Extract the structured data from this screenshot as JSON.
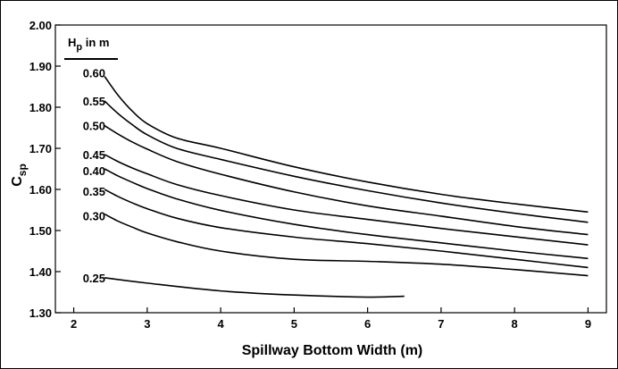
{
  "chart_data": {
    "type": "line",
    "title": "",
    "xlabel": "Spillway Bottom Width (m)",
    "ylabel_main": "C",
    "ylabel_sub": "sp",
    "xlim": [
      1.75,
      9.25
    ],
    "ylim": [
      1.3,
      2.0
    ],
    "x_ticks": [
      2,
      3,
      4,
      5,
      6,
      7,
      8,
      9
    ],
    "y_ticks": [
      1.3,
      1.4,
      1.5,
      1.6,
      1.7,
      1.8,
      1.9,
      2.0
    ],
    "y_tick_labels": [
      "1.30",
      "1.40",
      "1.50",
      "1.60",
      "1.70",
      "1.80",
      "1.90",
      "2.00"
    ],
    "grid": false,
    "legend_title_main": "H",
    "legend_title_sub": "p",
    "legend_title_rest": " in m",
    "series": [
      {
        "name": "0.60",
        "x": [
          2.42,
          2.6,
          2.8,
          3.0,
          3.4,
          4.0,
          5.0,
          6.0,
          7.0,
          8.0,
          9.0
        ],
        "y": [
          1.875,
          1.83,
          1.79,
          1.76,
          1.725,
          1.7,
          1.655,
          1.618,
          1.588,
          1.565,
          1.545
        ]
      },
      {
        "name": "0.55",
        "x": [
          2.42,
          2.6,
          2.8,
          3.0,
          3.4,
          4.0,
          5.0,
          6.0,
          7.0,
          8.0,
          9.0
        ],
        "y": [
          1.815,
          1.785,
          1.757,
          1.733,
          1.7,
          1.673,
          1.632,
          1.597,
          1.567,
          1.542,
          1.52
        ]
      },
      {
        "name": "0.50",
        "x": [
          2.42,
          2.6,
          2.8,
          3.0,
          3.4,
          4.0,
          5.0,
          6.0,
          7.0,
          8.0,
          9.0
        ],
        "y": [
          1.755,
          1.735,
          1.715,
          1.698,
          1.668,
          1.637,
          1.594,
          1.56,
          1.535,
          1.51,
          1.49
        ]
      },
      {
        "name": "0.45",
        "x": [
          2.42,
          2.6,
          2.8,
          3.0,
          3.4,
          4.0,
          5.0,
          6.0,
          7.0,
          8.0,
          9.0
        ],
        "y": [
          1.685,
          1.668,
          1.652,
          1.638,
          1.612,
          1.585,
          1.55,
          1.527,
          1.505,
          1.485,
          1.465
        ]
      },
      {
        "name": "0.40",
        "x": [
          2.42,
          2.6,
          2.8,
          3.0,
          3.4,
          4.0,
          5.0,
          6.0,
          7.0,
          8.0,
          9.0
        ],
        "y": [
          1.65,
          1.633,
          1.617,
          1.602,
          1.577,
          1.549,
          1.515,
          1.49,
          1.47,
          1.45,
          1.432
        ]
      },
      {
        "name": "0.35",
        "x": [
          2.42,
          2.6,
          2.8,
          3.0,
          3.4,
          4.0,
          5.0,
          6.0,
          7.0,
          8.0,
          9.0
        ],
        "y": [
          1.6,
          1.583,
          1.567,
          1.553,
          1.53,
          1.507,
          1.484,
          1.468,
          1.45,
          1.43,
          1.41
        ]
      },
      {
        "name": "0.30",
        "x": [
          2.42,
          2.6,
          2.8,
          3.0,
          3.4,
          4.0,
          5.0,
          6.0,
          7.0,
          8.0,
          9.0
        ],
        "y": [
          1.54,
          1.523,
          1.508,
          1.494,
          1.473,
          1.45,
          1.43,
          1.425,
          1.418,
          1.405,
          1.39
        ]
      },
      {
        "name": "0.25",
        "x": [
          2.42,
          3.0,
          4.0,
          5.0,
          6.0,
          6.5
        ],
        "y": [
          1.385,
          1.372,
          1.353,
          1.343,
          1.338,
          1.34
        ]
      }
    ]
  }
}
